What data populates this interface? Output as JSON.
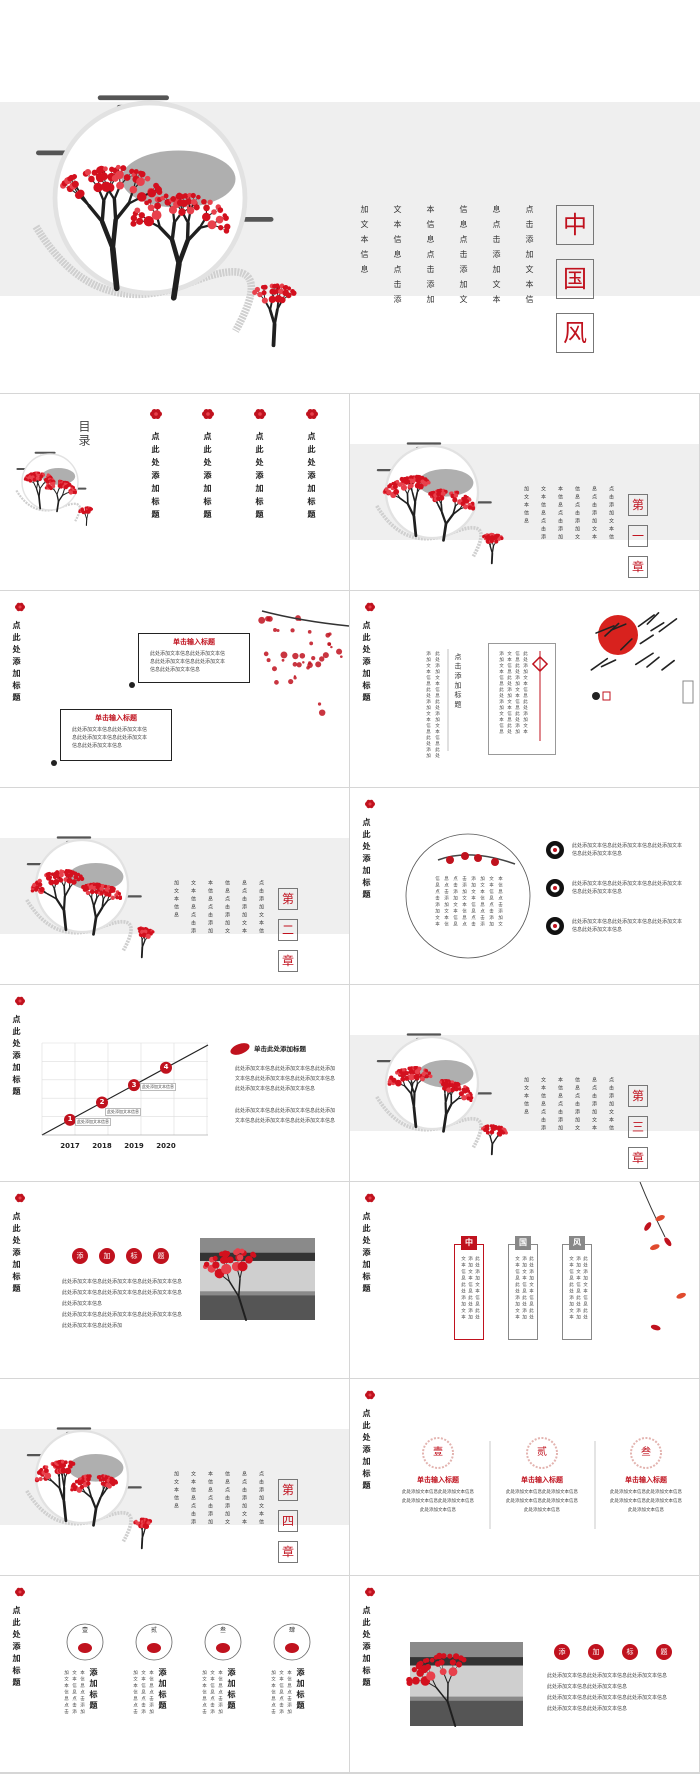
{
  "cover": {
    "title": [
      "中",
      "国",
      "风"
    ],
    "text_columns": [
      "点击添加文本信",
      "息点击添加文本",
      "信息点击添加文",
      "本信息点击添加",
      "文本信息点击添",
      "加文本信息"
    ]
  },
  "contents": {
    "label": "目录",
    "items": [
      "点此处添加标题",
      "点此处添加标题",
      "点此处添加标题",
      "点此处添加标题"
    ]
  },
  "chapter_1": {
    "marker": [
      "第",
      "一",
      "章"
    ],
    "text_columns": [
      "点击添加文本信",
      "息点击添加文本",
      "信息点击添加文",
      "本信息点击添加",
      "文本信息点击添",
      "加文本信息"
    ]
  },
  "chapter_2": {
    "marker": [
      "第",
      "二",
      "章"
    ],
    "text_columns": [
      "点击添加文本信",
      "息点击添加文本",
      "信息点击添加文",
      "本信息点击添加",
      "文本信息点击添",
      "加文本信息"
    ]
  },
  "chapter_3": {
    "marker": [
      "第",
      "三",
      "章"
    ],
    "text_columns": [
      "点击添加文本信",
      "息点击添加文本",
      "信息点击添加文",
      "本信息点击添加",
      "文本信息点击添",
      "加文本信息"
    ]
  },
  "chapter_4": {
    "marker": [
      "第",
      "四",
      "章"
    ],
    "text_columns": [
      "点击添加文本信",
      "息点击添加文本",
      "信息点击添加文",
      "本信息点击添加",
      "文本信息点击添",
      "加文本信息"
    ]
  },
  "slide_boxes": {
    "heading": "点此处添加标题",
    "boxes": [
      {
        "title": "单击输入标题",
        "lines": [
          "此处添加文本信息此处添加文本信",
          "息此处添加文本信息此处添加文本",
          "信息此处添加文本信息"
        ]
      },
      {
        "title": "单击输入标题",
        "lines": [
          "此处添加文本信息此处添加文本信",
          "息此处添加文本信息此处添加文本",
          "信息此处添加文本信息"
        ]
      }
    ]
  },
  "slide_scroll": {
    "heading": "点此处添加标题",
    "title": "点击添加标题",
    "side_columns": [
      "此处添加文本信息此处添加文本信息此处",
      "添加文本信息此处添加文本信息此处添加"
    ],
    "scroll_columns": [
      "此处添加文本信息此处添加文本",
      "信息此处添加文本信息此处添加",
      "文本信息此处添加文本信息此处",
      "添加文本信息此处添加文本信息"
    ]
  },
  "slide_circle": {
    "heading": "点此处添加标题",
    "circle_columns": [
      "本信息点击添加文",
      "文本信息点击添加",
      "加文本信息点击添",
      "添加文本信息点击",
      "击添加文本信息点",
      "点击添加文本信息",
      "息点击添加文本信",
      "信息点击添加文本"
    ],
    "items": [
      {
        "lines": [
          "此处添加文本信息此处添加文本信息此处添加文本",
          "信息此处添加文本信息"
        ]
      },
      {
        "lines": [
          "此处添加文本信息此处添加文本信息此处添加文本",
          "信息此处添加文本信息"
        ]
      },
      {
        "lines": [
          "此处添加文本信息此处添加文本信息此处添加文本",
          "信息此处添加文本信息"
        ]
      }
    ]
  },
  "slide_timeline": {
    "heading": "点此处添加标题",
    "years": [
      "2017",
      "2018",
      "2019",
      "2020"
    ],
    "steps": [
      "1",
      "2",
      "3",
      "4"
    ],
    "notes": [
      "此处添加文本信息",
      "此处添加文本信息",
      "此处添加文本信息"
    ],
    "subtitle": "单击此处添加标题",
    "paragraphs": [
      "此处添加文本信息此处添加文本信息此处添加",
      "文本信息此处添加文本信息此处添加文本信息",
      "此处添加文本信息此处添加文本信息",
      "此处添加文本信息此处添加文本信息此处添加",
      "文本信息此处添加文本信息此处添加文本信息"
    ]
  },
  "slide_tags": {
    "heading": "点此处添加标题",
    "tags": [
      "添",
      "加",
      "标",
      "题"
    ],
    "paragraphs": [
      "此处添加文本信息此处添加文本信息此处添加文本信息",
      "此处添加文本信息此处添加文本信息此处添加文本信息",
      "此处添加文本信息",
      "此处添加文本信息此处添加文本信息此处添加文本信息",
      "此处添加文本信息此处添加"
    ]
  },
  "slide_cards": {
    "heading": "点此处添加标题",
    "cards": [
      {
        "label": "中",
        "columns": [
          "此处添加文本信息此处",
          "添加文本信息此处添加",
          "文本信息此处添加文本"
        ]
      },
      {
        "label": "国",
        "columns": [
          "此处添加文本信息此处",
          "添加文本信息此处添加",
          "文本信息此处添加文本"
        ]
      },
      {
        "label": "风",
        "columns": [
          "此处添加文本信息此处",
          "添加文本信息此处添加",
          "文本信息此处添加文本"
        ]
      }
    ]
  },
  "slide_three": {
    "heading": "点此处添加标题",
    "items": [
      {
        "seal": "壹",
        "title": "单击输入标题",
        "lines": [
          "此处添加文本信息此处添加文本信息",
          "此处添加文本信息此处添加文本信息",
          "此处添加文本信息"
        ]
      },
      {
        "seal": "贰",
        "title": "单击输入标题",
        "lines": [
          "此处添加文本信息此处添加文本信息",
          "此处添加文本信息此处添加文本信息",
          "此处添加文本信息"
        ]
      },
      {
        "seal": "叁",
        "title": "单击输入标题",
        "lines": [
          "此处添加文本信息此处添加文本信息",
          "此处添加文本信息此处添加文本信息",
          "此处添加文本信息"
        ]
      }
    ]
  },
  "slide_icons": {
    "heading": "点此处添加标题",
    "items": [
      {
        "label": "壹",
        "title": "添加标题",
        "columns": [
          "本信息点击添加",
          "文本信息点击添",
          "加文本信息点击"
        ]
      },
      {
        "label": "贰",
        "title": "添加标题",
        "columns": [
          "本信息点击添加",
          "文本信息点击添",
          "加文本信息点击"
        ]
      },
      {
        "label": "叁",
        "title": "添加标题",
        "columns": [
          "本信息点击添加",
          "文本信息点击添",
          "加文本信息点击"
        ]
      },
      {
        "label": "肆",
        "title": "添加标题",
        "columns": [
          "本信息点击添加",
          "文本信息点击添",
          "加文本信息点击"
        ]
      }
    ]
  },
  "slide_photo": {
    "heading": "点此处添加标题",
    "tags": [
      "添",
      "加",
      "标",
      "题"
    ],
    "paragraphs": [
      "此处添加文本信息此处添加文本信息此处添加文本信息",
      "此处添加文本信息此处添加文本信息",
      "此处添加文本信息此处添加文本信息此处添加文本信息",
      "此处添加文本信息此处添加文本信息"
    ]
  }
}
